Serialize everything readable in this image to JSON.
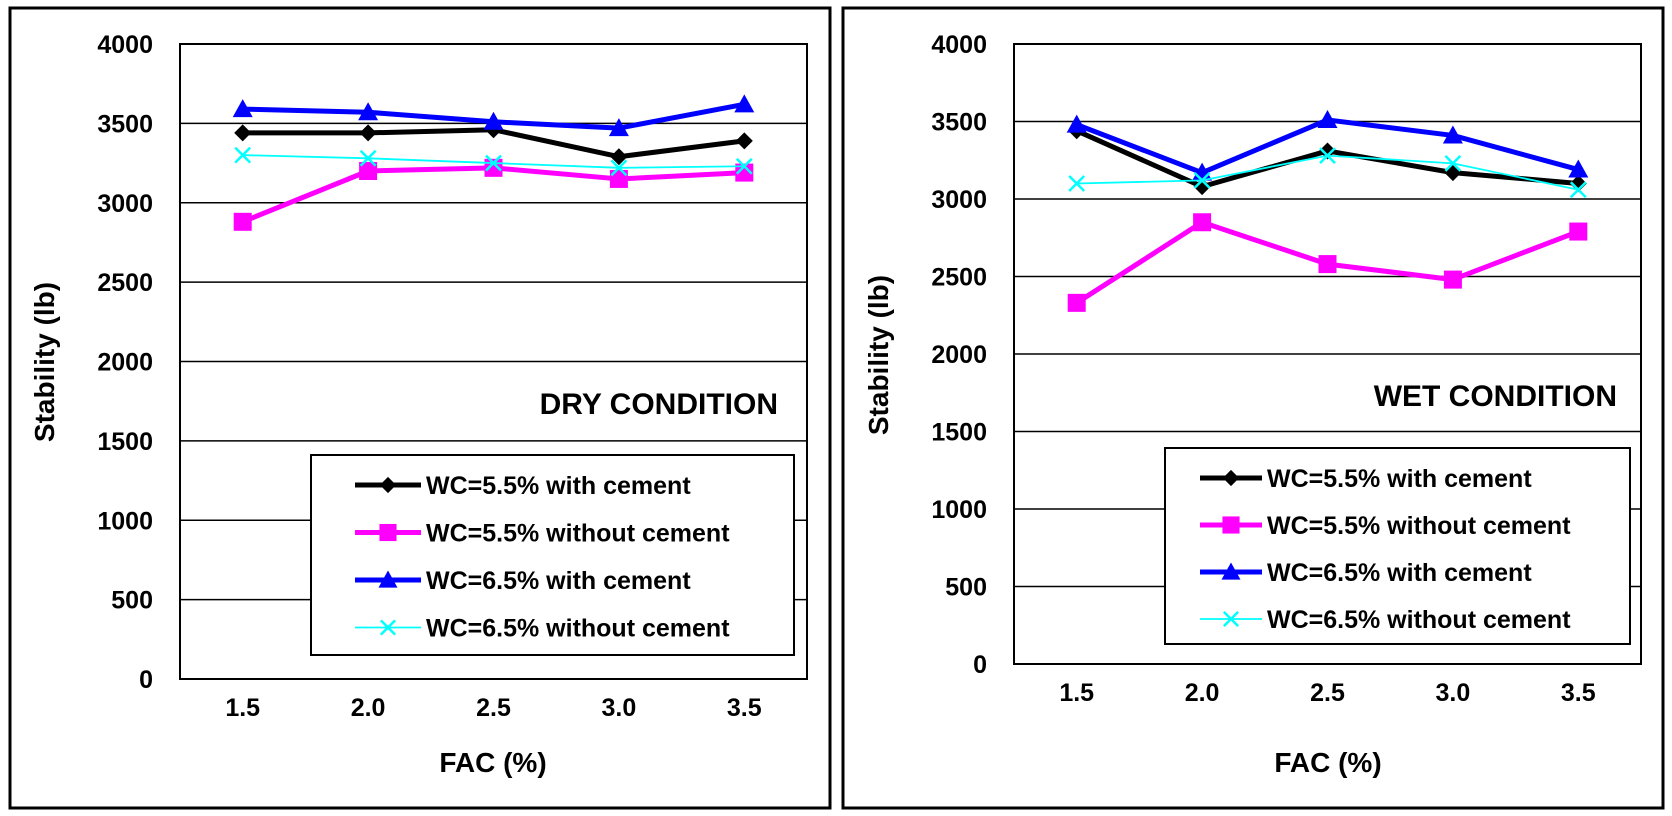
{
  "chart_data": [
    {
      "type": "line",
      "title": "DRY CONDITION",
      "xlabel": "FAC (%)",
      "ylabel": "Stability (lb)",
      "categories": [
        "1.5",
        "2.0",
        "2.5",
        "3.0",
        "3.5"
      ],
      "ylim": [
        0,
        4000
      ],
      "yticks": [
        "0",
        "500",
        "1000",
        "1500",
        "2000",
        "2500",
        "3000",
        "3500",
        "4000"
      ],
      "grid": true,
      "legend_position": "bottom-right",
      "series": [
        {
          "name": "WC=5.5% with cement",
          "values": [
            3440,
            3440,
            3460,
            3290,
            3390
          ],
          "color": "#000000",
          "marker": "diamond"
        },
        {
          "name": "WC=5.5% without cement",
          "values": [
            2880,
            3200,
            3220,
            3150,
            3190
          ],
          "color": "#ff00ff",
          "marker": "square"
        },
        {
          "name": "WC=6.5% with cement",
          "values": [
            3590,
            3570,
            3510,
            3470,
            3620
          ],
          "color": "#0000ff",
          "marker": "triangle"
        },
        {
          "name": "WC=6.5% without cement",
          "values": [
            3300,
            3280,
            3250,
            3220,
            3230
          ],
          "color": "#00ffff",
          "marker": "x"
        }
      ]
    },
    {
      "type": "line",
      "title": "WET CONDITION",
      "xlabel": "FAC (%)",
      "ylabel": "Stability (lb)",
      "categories": [
        "1.5",
        "2.0",
        "2.5",
        "3.0",
        "3.5"
      ],
      "ylim": [
        0,
        4000
      ],
      "yticks": [
        "0",
        "500",
        "1000",
        "1500",
        "2000",
        "2500",
        "3000",
        "3500",
        "4000"
      ],
      "grid": true,
      "legend_position": "bottom-right",
      "series": [
        {
          "name": "WC=5.5% with cement",
          "values": [
            3440,
            3080,
            3310,
            3170,
            3100
          ],
          "color": "#000000",
          "marker": "diamond"
        },
        {
          "name": "WC=5.5% without cement",
          "values": [
            2330,
            2850,
            2580,
            2480,
            2790
          ],
          "color": "#ff00ff",
          "marker": "square"
        },
        {
          "name": "WC=6.5% with cement",
          "values": [
            3480,
            3170,
            3510,
            3410,
            3190
          ],
          "color": "#0000ff",
          "marker": "triangle"
        },
        {
          "name": "WC=6.5% without cement",
          "values": [
            3100,
            3120,
            3280,
            3230,
            3060
          ],
          "color": "#00ffff",
          "marker": "x"
        }
      ]
    }
  ]
}
